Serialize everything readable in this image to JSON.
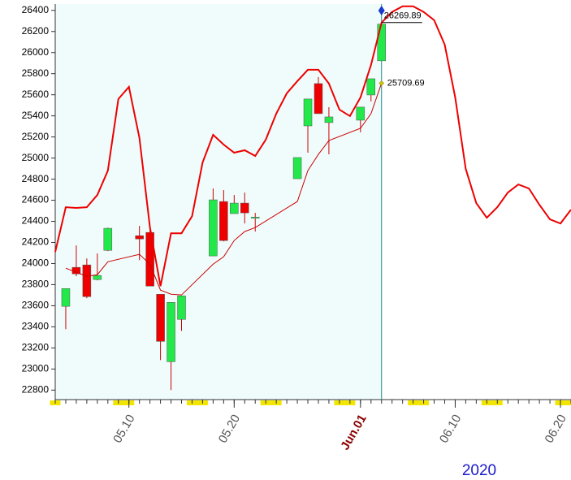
{
  "chart_data": {
    "type": "candlestick",
    "x": [
      "2020-05-04",
      "2020-05-05",
      "2020-05-06",
      "2020-05-07",
      "2020-05-08",
      "2020-05-11",
      "2020-05-12",
      "2020-05-13",
      "2020-05-14",
      "2020-05-15",
      "2020-05-18",
      "2020-05-19",
      "2020-05-20",
      "2020-05-21",
      "2020-05-22",
      "2020-05-26",
      "2020-05-27",
      "2020-05-28",
      "2020-05-29",
      "2020-06-01",
      "2020-06-02",
      "2020-06-03"
    ],
    "open": [
      23594,
      23964,
      23987,
      23848,
      24125,
      24264,
      24295,
      23709,
      23069,
      23470,
      24072,
      24588,
      24473,
      24573,
      24430,
      24804,
      25305,
      25706,
      25336,
      25359,
      25598,
      25922
    ],
    "high": [
      23763,
      24172,
      24048,
      24095,
      24340,
      24357,
      24357,
      23709,
      23632,
      23694,
      24712,
      24696,
      24650,
      24673,
      24480,
      25005,
      25560,
      25768,
      25483,
      25483,
      25752,
      26269.89
    ],
    "low": [
      23378,
      23880,
      23671,
      23840,
      24118,
      24033,
      23786,
      23085,
      22800,
      23362,
      24072,
      24210,
      24473,
      24380,
      24303,
      24804,
      25051,
      25421,
      25035,
      25244,
      25537,
      25922
    ],
    "close": [
      23763,
      23902,
      23686,
      23887,
      24334,
      24233,
      23786,
      23262,
      23632,
      23694,
      24604,
      24218,
      24573,
      24480,
      24440,
      25005,
      25560,
      25421,
      25390,
      25483,
      25752,
      26269.89
    ],
    "up_color": "#22e84a",
    "down_color": "#ee0000",
    "lines": [
      {
        "x": [
          "2020-05-03",
          "2020-05-04",
          "2020-05-05",
          "2020-05-06",
          "2020-05-07",
          "2020-05-08",
          "2020-05-09",
          "2020-05-10",
          "2020-05-11",
          "2020-05-12",
          "2020-05-13",
          "2020-05-14",
          "2020-05-15",
          "2020-05-16",
          "2020-05-17",
          "2020-05-18",
          "2020-05-19",
          "2020-05-20",
          "2020-05-21",
          "2020-05-22",
          "2020-05-23",
          "2020-05-24",
          "2020-05-25",
          "2020-05-26",
          "2020-05-27",
          "2020-05-28",
          "2020-05-29",
          "2020-05-30",
          "2020-05-31",
          "2020-06-01",
          "2020-06-02",
          "2020-06-03",
          "2020-06-04",
          "2020-06-05",
          "2020-06-06",
          "2020-06-07",
          "2020-06-08",
          "2020-06-09",
          "2020-06-10",
          "2020-06-11",
          "2020-06-12",
          "2020-06-13",
          "2020-06-14",
          "2020-06-15",
          "2020-06-16",
          "2020-06-17",
          "2020-06-18",
          "2020-06-19",
          "2020-06-20",
          "2020-06-21"
        ],
        "values": [
          24110,
          24534,
          24527,
          24534,
          24650,
          24881,
          25560,
          25675,
          25190,
          24341,
          23786,
          24287,
          24287,
          24449,
          24958,
          25220,
          25128,
          25051,
          25074,
          25020,
          25174,
          25421,
          25614,
          25729,
          25837,
          25837,
          25706,
          25459,
          25398,
          25575,
          25883,
          26284,
          26385,
          26439,
          26439,
          26385,
          26307,
          26076,
          25575,
          24897,
          24573,
          24434,
          24534,
          24673,
          24750,
          24712,
          24557,
          24419,
          24380,
          24511
        ],
        "color": "#ee0000",
        "width": 2
      },
      {
        "x": [
          "2020-05-04",
          "2020-05-05",
          "2020-05-06",
          "2020-05-07",
          "2020-05-08",
          "2020-05-11",
          "2020-05-12",
          "2020-05-13",
          "2020-05-14",
          "2020-05-15",
          "2020-05-18",
          "2020-05-19",
          "2020-05-20",
          "2020-05-21",
          "2020-05-22",
          "2020-05-26",
          "2020-05-27",
          "2020-05-28",
          "2020-05-29",
          "2020-06-01",
          "2020-06-02",
          "2020-06-03"
        ],
        "values": [
          23956,
          23917,
          23879,
          23894,
          24017,
          24087,
          23994,
          23748,
          23709,
          23702,
          23994,
          24064,
          24218,
          24303,
          24341,
          24588,
          24881,
          25035,
          25166,
          25282,
          25421,
          25709.69
        ],
        "color": "#cc0000",
        "width": 1
      }
    ],
    "annotations": [
      {
        "x": "2020-06-03",
        "value": 26269.89,
        "label": "26269.89"
      },
      {
        "x": "2020-06-03",
        "value": 25709.69,
        "label": "25709.69"
      }
    ],
    "xlim": [
      "2020-05-03",
      "2020-06-21"
    ],
    "xticks": [
      {
        "value": "2020-05-10",
        "label": "05.10"
      },
      {
        "value": "2020-05-20",
        "label": "05.20"
      },
      {
        "value": "2020-06-01",
        "label": "Jun.01"
      },
      {
        "value": "2020-06-10",
        "label": "06.10"
      },
      {
        "value": "2020-06-20",
        "label": "06.20"
      }
    ],
    "xlabel": "2020",
    "ylim": [
      22710,
      26460
    ],
    "yticks": [
      22800,
      23000,
      23200,
      23400,
      23600,
      23800,
      24000,
      24200,
      24400,
      24600,
      24800,
      25000,
      25200,
      25400,
      25600,
      25800,
      26000,
      26200,
      26400
    ]
  }
}
